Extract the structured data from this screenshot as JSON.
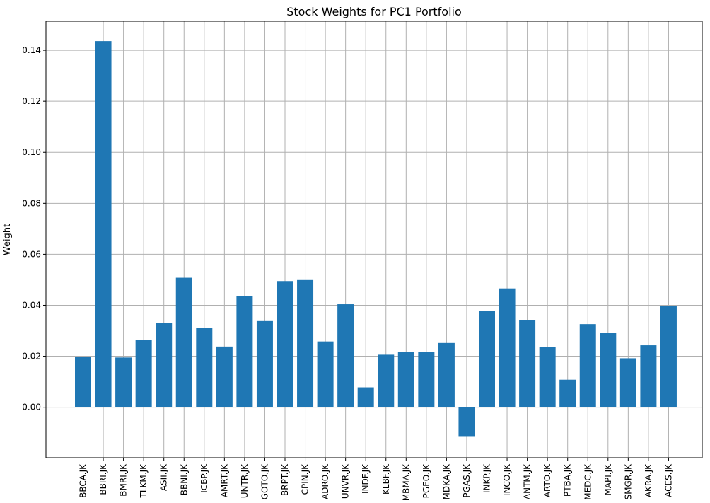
{
  "chart_data": {
    "type": "bar",
    "title": "Stock Weights for PC1 Portfolio",
    "xlabel": "",
    "ylabel": "Weight",
    "categories": [
      "BBCA.JK",
      "BBRI.JK",
      "BMRI.JK",
      "TLKM.JK",
      "ASII.JK",
      "BBNI.JK",
      "ICBP.JK",
      "AMRT.JK",
      "UNTR.JK",
      "GOTO.JK",
      "BRPT.JK",
      "CPIN.JK",
      "ADRO.JK",
      "UNVR.JK",
      "INDF.JK",
      "KLBF.JK",
      "MBMA.JK",
      "PGEO.JK",
      "MDKA.JK",
      "PGAS.JK",
      "INKP.JK",
      "INCO.JK",
      "ANTM.JK",
      "ARTO.JK",
      "PTBA.JK",
      "MEDC.JK",
      "MAPI.JK",
      "SMGR.JK",
      "AKRA.JK",
      "ACES.JK"
    ],
    "values": [
      0.0197,
      0.1436,
      0.0195,
      0.0263,
      0.033,
      0.0508,
      0.0311,
      0.0238,
      0.0437,
      0.0338,
      0.0495,
      0.0499,
      0.0258,
      0.0404,
      0.0078,
      0.0206,
      0.0216,
      0.0218,
      0.0252,
      -0.0116,
      0.0379,
      0.0466,
      0.0341,
      0.0235,
      0.0108,
      0.0326,
      0.0292,
      0.0192,
      0.0243,
      0.0397
    ],
    "ylim": [
      -0.0198,
      0.1514
    ],
    "yticks": [
      0.0,
      0.02,
      0.04,
      0.06,
      0.08,
      0.1,
      0.12,
      0.14
    ],
    "ytick_labels": [
      "0.00",
      "0.02",
      "0.04",
      "0.06",
      "0.08",
      "0.10",
      "0.12",
      "0.14"
    ],
    "grid": true,
    "bar_color": "#1f77b4"
  }
}
